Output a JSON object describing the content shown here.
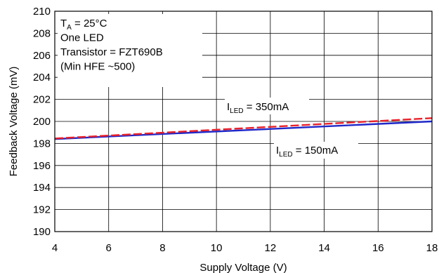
{
  "chart_data": {
    "type": "line",
    "xlabel": "Supply Voltage (V)",
    "ylabel": "Feedback Voltage (mV)",
    "xlim": [
      4,
      18
    ],
    "ylim": [
      190,
      210
    ],
    "x_ticks": [
      4,
      6,
      8,
      10,
      12,
      14,
      16,
      18
    ],
    "y_ticks": [
      190,
      192,
      194,
      196,
      198,
      200,
      202,
      204,
      206,
      208,
      210
    ],
    "grid": true,
    "series": [
      {
        "name": "ILED = 350mA",
        "name_main": "I",
        "name_sub": "LED",
        "name_rest": " = 350mA",
        "color": "#e8202a",
        "style": "dashed",
        "x": [
          4,
          18
        ],
        "y": [
          198.45,
          200.3
        ]
      },
      {
        "name": "ILED = 150mA",
        "name_main": "I",
        "name_sub": "LED",
        "name_rest": " = 150mA",
        "color": "#1f28c8",
        "style": "solid",
        "x": [
          4,
          18
        ],
        "y": [
          198.4,
          200.0
        ]
      }
    ],
    "annotation": {
      "ta_main": "T",
      "ta_sub": "A",
      "ta_rest": " = 25°C",
      "lines": [
        "One LED",
        "Transistor = FZT690B",
        "(Min HFE ~500)"
      ]
    }
  }
}
